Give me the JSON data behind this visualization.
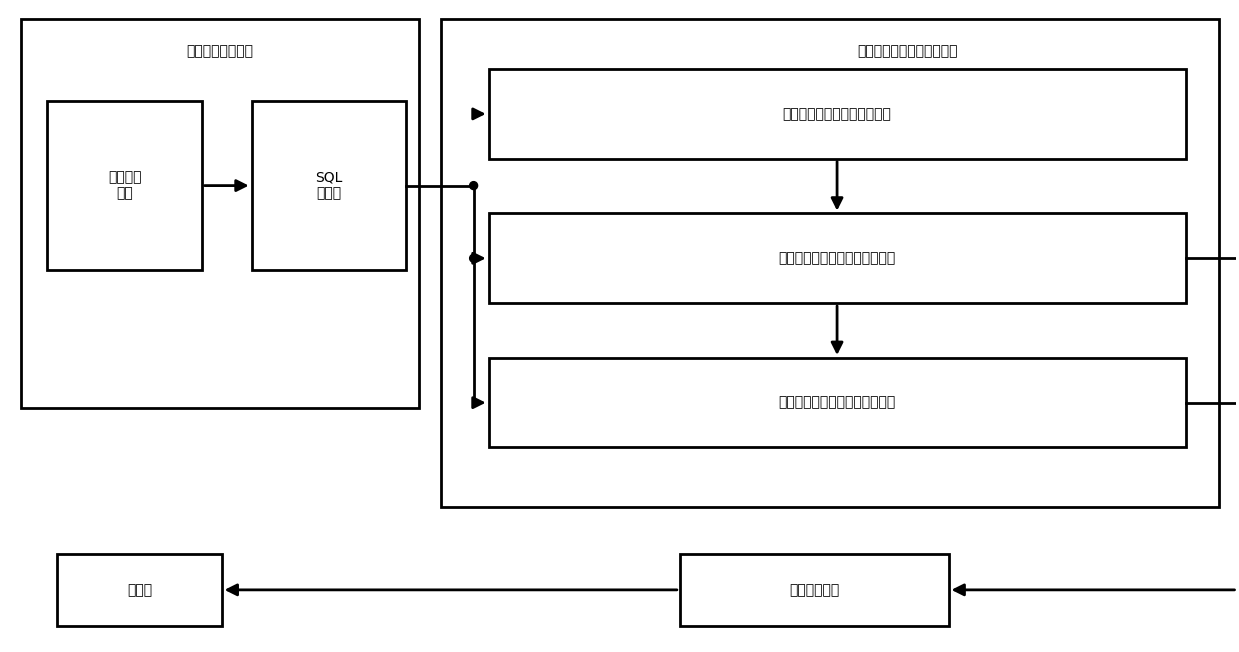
{
  "bg_color": "#ffffff",
  "fig_width": 12.39,
  "fig_height": 6.52,
  "dpi": 100,
  "left_module_label": "电警数据采集模块",
  "right_module_label": "交通信号控制方案生成模块",
  "box1_label": "电子警察\n设备",
  "box2_label": "SQL\n数据库",
  "box3_label": "交通信号控制预案库生成单元",
  "box4_label": "交通信号控制战略方案生成单元",
  "box5_label": "交通信号控制战术方案生成单元",
  "box6_label": "信号控制平台",
  "box7_label": "信号机",
  "font_size_small": 14,
  "font_size_large": 15,
  "line_color": "#000000",
  "box_edge_color": "#000000",
  "box_face_color": "#ffffff",
  "lw_outer": 2.0,
  "lw_inner": 2.0,
  "lw_line": 2.0
}
